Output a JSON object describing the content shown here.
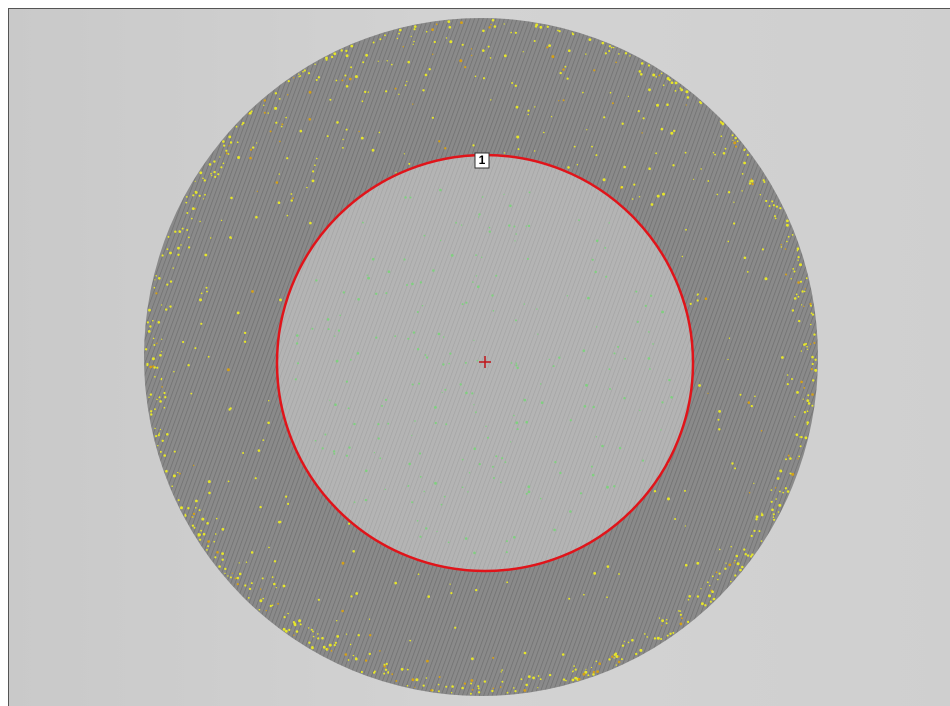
{
  "roi": {
    "label": "1"
  }
}
